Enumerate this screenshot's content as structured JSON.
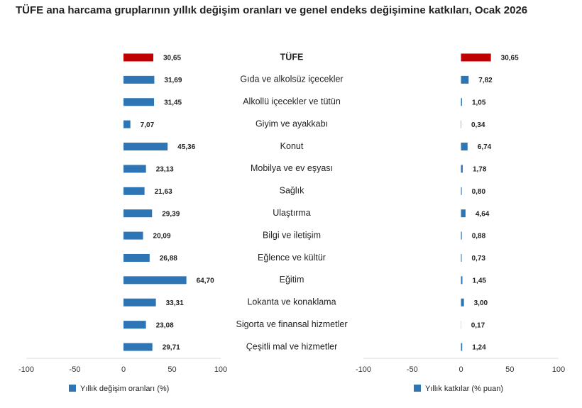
{
  "chart_data": [
    {
      "type": "bar",
      "orientation": "horizontal",
      "title": "TÜFE ana harcama gruplarının yıllık değişim oranları ve genel endeks değişimine katkıları, Ocak 2026",
      "categories": [
        "TÜFE",
        "Gıda ve alkolsüz içecekler",
        "Alkollü içecekler ve tütün",
        "Giyim ve ayakkabı",
        "Konut",
        "Mobilya ve ev eşyası",
        "Sağlık",
        "Ulaştırma",
        "Bilgi ve iletişim",
        "Eğlence ve kültür",
        "Eğitim",
        "Lokanta ve konaklama",
        "Sigorta ve finansal hizmetler",
        "Çeşitli mal ve hizmetler"
      ],
      "series": [
        {
          "name": "Yıllık değişim oranları (%)",
          "color": "#2e75b6",
          "colors": [
            "#c00000",
            "#2e75b6",
            "#2e75b6",
            "#2e75b6",
            "#2e75b6",
            "#2e75b6",
            "#2e75b6",
            "#2e75b6",
            "#2e75b6",
            "#2e75b6",
            "#2e75b6",
            "#2e75b6",
            "#2e75b6",
            "#2e75b6"
          ],
          "values": [
            30.65,
            31.69,
            31.45,
            7.07,
            45.36,
            23.13,
            21.63,
            29.39,
            20.09,
            26.88,
            64.7,
            33.31,
            23.08,
            29.71
          ],
          "value_labels": [
            "30,65",
            "31,69",
            "31,45",
            "7,07",
            "45,36",
            "23,13",
            "21,63",
            "29,39",
            "20,09",
            "26,88",
            "64,70",
            "33,31",
            "23,08",
            "29,71"
          ]
        }
      ],
      "xlim": [
        -100,
        100
      ],
      "xticks": [
        -100,
        -50,
        0,
        50,
        100
      ]
    },
    {
      "type": "bar",
      "orientation": "horizontal",
      "series": [
        {
          "name": "Yıllık katkılar (% puan)",
          "color": "#2e75b6",
          "colors": [
            "#c00000",
            "#2e75b6",
            "#2e75b6",
            "#2e75b6",
            "#2e75b6",
            "#2e75b6",
            "#2e75b6",
            "#2e75b6",
            "#2e75b6",
            "#2e75b6",
            "#2e75b6",
            "#2e75b6",
            "#2e75b6",
            "#2e75b6"
          ],
          "values": [
            30.65,
            7.82,
            1.05,
            0.34,
            6.74,
            1.78,
            0.8,
            4.64,
            0.88,
            0.73,
            1.45,
            3.0,
            0.17,
            1.24
          ],
          "value_labels": [
            "30,65",
            "7,82",
            "1,05",
            "0,34",
            "6,74",
            "1,78",
            "0,80",
            "4,64",
            "0,88",
            "0,73",
            "1,45",
            "3,00",
            "0,17",
            "1,24"
          ]
        }
      ],
      "xlim": [
        -100,
        100
      ],
      "xticks": [
        -100,
        -50,
        0,
        50,
        100
      ]
    }
  ]
}
